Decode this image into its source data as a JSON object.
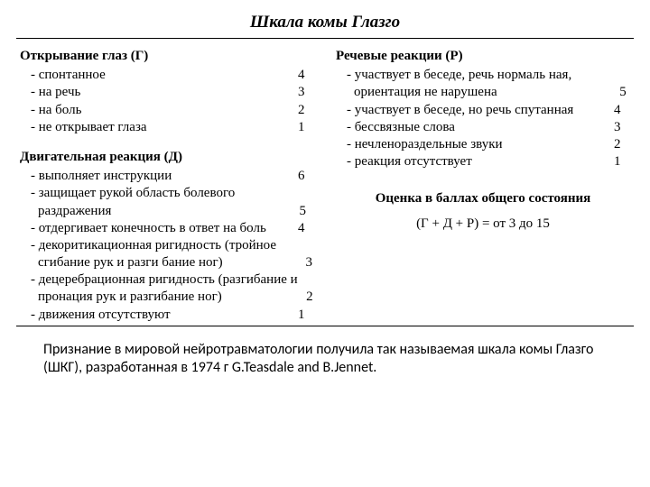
{
  "title": "Шкала комы Глазго",
  "left": {
    "eye": {
      "heading": "Открывание глаз (Г)",
      "items": [
        {
          "label": "- спонтанное",
          "score": "4"
        },
        {
          "label": "- на речь",
          "score": "3"
        },
        {
          "label": "- на боль",
          "score": "2"
        },
        {
          "label": "- не открывает глаза",
          "score": "1"
        }
      ]
    },
    "motor": {
      "heading": "Двигательная реакция (Д)",
      "items": [
        {
          "label": "- выполняет инструкции",
          "score": "6"
        },
        {
          "label": "- защищает рукой область болевого раздражения",
          "score": "5"
        },
        {
          "label": "- отдергивает конечность в ответ на боль",
          "score": "4"
        },
        {
          "label": "- декоритикационная ригидность (тройное сгибание рук и разги бание ног)",
          "score": "3"
        },
        {
          "label": "- децеребрационная ригидность (разгибание и пронация рук и разгибание ног)",
          "score": "2"
        },
        {
          "label": "- движения отсутствуют",
          "score": "1"
        }
      ]
    }
  },
  "right": {
    "verbal": {
      "heading": "Речевые реакции (Р)",
      "items": [
        {
          "label": "- участвует в беседе, речь нормаль ная, ориентация не нарушена",
          "score": "5"
        },
        {
          "label": "- участвует в беседе, но речь спутанная",
          "score": "4"
        },
        {
          "label": "- бессвязные слова",
          "score": "3"
        },
        {
          "label": "- нечленораздельные звуки",
          "score": "2"
        },
        {
          "label": "- реакция отсутствует",
          "score": "1"
        }
      ]
    },
    "total": {
      "heading": "Оценка в баллах общего состояния",
      "formula": "(Г + Д + Р) = от 3 до 15"
    }
  },
  "caption": "Признание в мировой нейротравматологии получила так называемая шкала комы Глазго (ШКГ), разработанная в 1974 г G.Teasdale and В.Jennet."
}
